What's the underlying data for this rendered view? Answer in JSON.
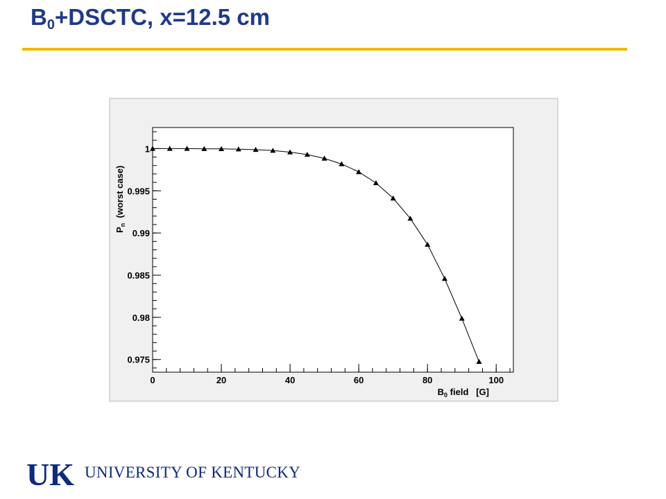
{
  "slide": {
    "title_prefix": "B",
    "title_sub": "0",
    "title_suffix": "+DSCTC, x=12.5 cm",
    "accent_color": "#f2b705",
    "title_color": "#1f3a8a"
  },
  "footer": {
    "logo_letters": "UK",
    "university_name": "UNIVERSITY OF KENTUCKY",
    "brand_color": "#0b2a80"
  },
  "chart_data": {
    "type": "line",
    "title": "",
    "xlabel_main": "B",
    "xlabel_sub": "0",
    "xlabel_rest": " field   [G]",
    "ylabel_main": "P",
    "ylabel_sub": "n",
    "ylabel_rest": "  (worst case)",
    "xlim": [
      0,
      105
    ],
    "ylim": [
      0.9735,
      1.0025
    ],
    "xticks": [
      0,
      20,
      40,
      60,
      80,
      100
    ],
    "xtick_labels": [
      "0",
      "20",
      "40",
      "60",
      "80",
      "100"
    ],
    "yticks": [
      0.975,
      0.98,
      0.985,
      0.99,
      0.995,
      1
    ],
    "ytick_labels": [
      "0.975",
      "0.98",
      "0.985",
      "0.99",
      "0.995",
      "1"
    ],
    "grid": false,
    "marker": "triangle",
    "series": [
      {
        "x": [
          0,
          5,
          10,
          15,
          20,
          25,
          30,
          35,
          40,
          45,
          50,
          55,
          60,
          65,
          70,
          75,
          80,
          85,
          90,
          95
        ],
        "y": [
          1.0,
          1.0,
          1.0,
          0.99998,
          0.99997,
          0.99994,
          0.99988,
          0.99977,
          0.99958,
          0.9993,
          0.99884,
          0.99818,
          0.99724,
          0.99593,
          0.99412,
          0.99172,
          0.98863,
          0.98459,
          0.97987,
          0.97475
        ]
      }
    ]
  }
}
